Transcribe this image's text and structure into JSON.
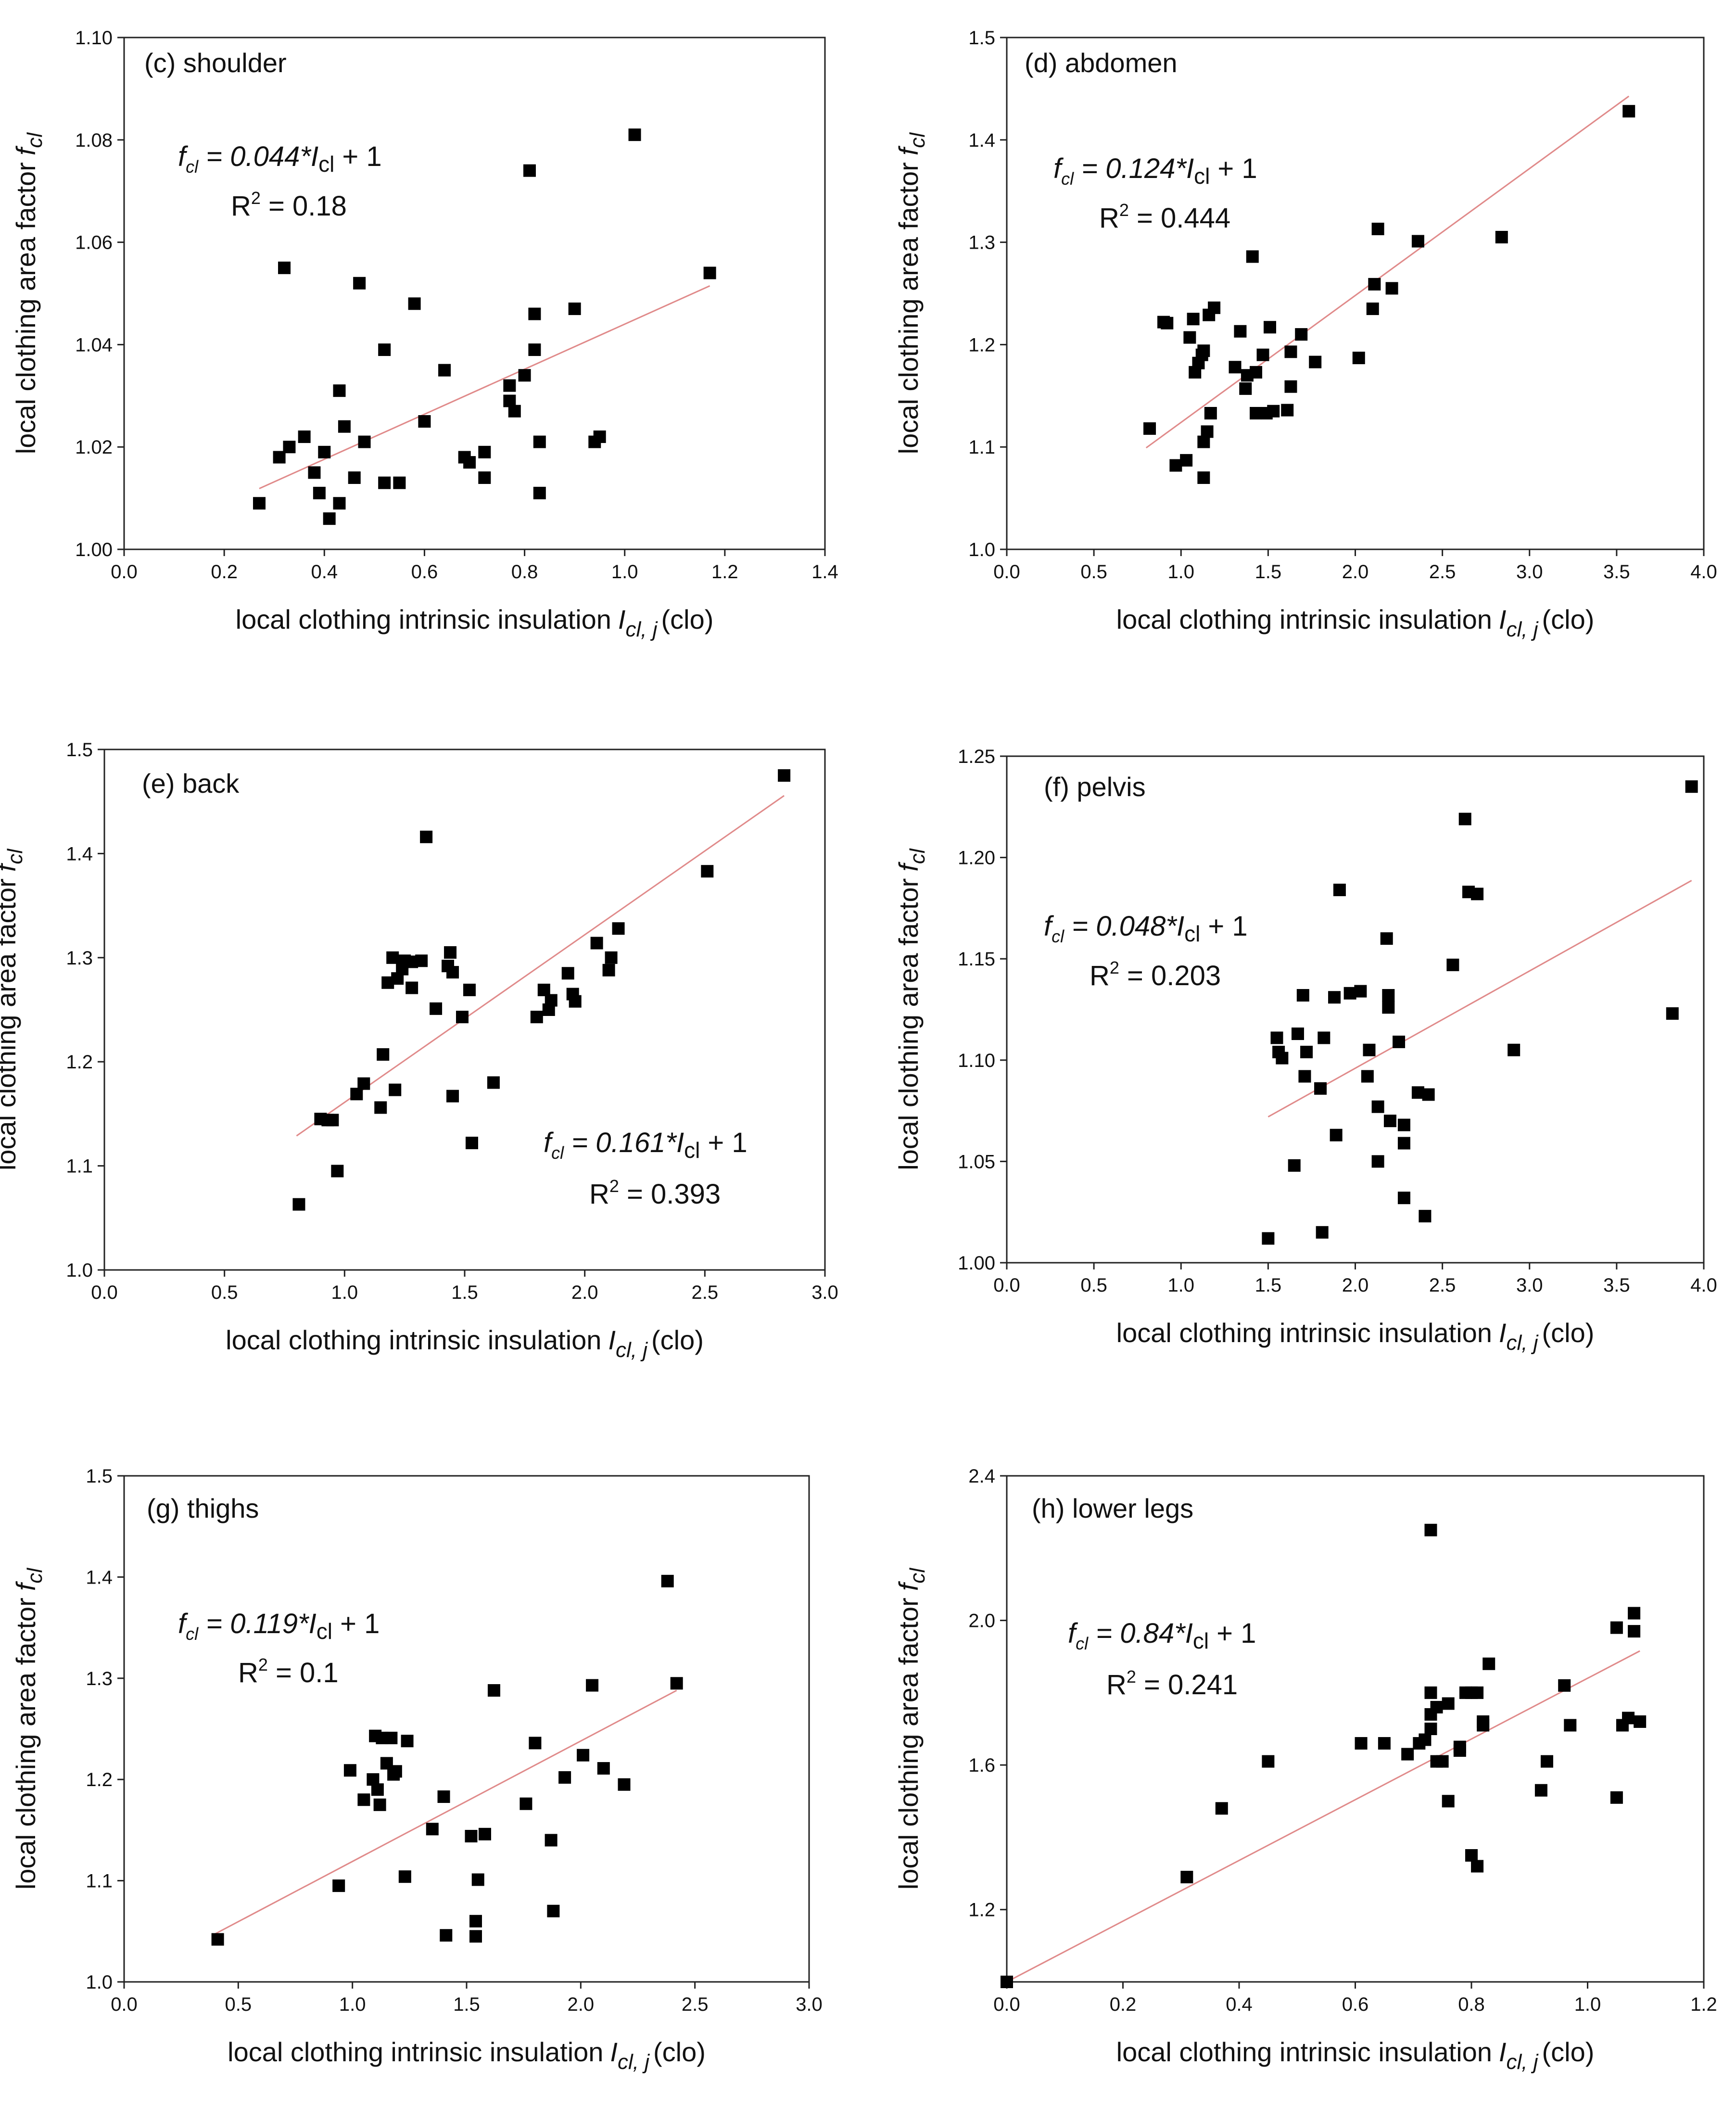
{
  "chart_data": [
    {
      "type": "scatter",
      "label": "(c) shoulder",
      "xlabel": "local clothing intrinsic insulation",
      "xlabel_sym": "I",
      "xlabel_sub": "cl, j",
      "xlabel_unit": "(clo)",
      "ylabel": "local clothing area factor",
      "ylabel_sym": "f",
      "ylabel_sub": "cl",
      "xlim": [
        0,
        1.4
      ],
      "xticks": [
        0.0,
        0.2,
        0.4,
        0.6,
        0.8,
        1.0,
        1.2,
        1.4
      ],
      "xdec": 1,
      "ylim": [
        1.0,
        1.1
      ],
      "yticks": [
        1.0,
        1.02,
        1.04,
        1.06,
        1.08,
        1.1
      ],
      "ydec": 2,
      "fit": {
        "slope": 0.044,
        "intercept": 1,
        "x_range": [
          0.27,
          1.17
        ]
      },
      "equation": {
        "lhs_sym": "f",
        "lhs_sub": "cl",
        "mid": " = 0.044*",
        "var_sym": "I",
        "var_sub": "cl",
        "rhs": " + 1",
        "r2_prefix": "R",
        "r2_exp": "2",
        "r2_value": " = 0.18"
      },
      "points": [
        [
          0.27,
          1.009
        ],
        [
          0.31,
          1.018
        ],
        [
          0.32,
          1.055
        ],
        [
          0.33,
          1.02
        ],
        [
          0.36,
          1.022
        ],
        [
          0.38,
          1.015
        ],
        [
          0.39,
          1.011
        ],
        [
          0.4,
          1.019
        ],
        [
          0.41,
          1.006
        ],
        [
          0.43,
          1.031
        ],
        [
          0.43,
          1.009
        ],
        [
          0.44,
          1.024
        ],
        [
          0.46,
          1.014
        ],
        [
          0.47,
          1.052
        ],
        [
          0.48,
          1.021
        ],
        [
          0.52,
          1.039
        ],
        [
          0.52,
          1.013
        ],
        [
          0.55,
          1.013
        ],
        [
          0.58,
          1.048
        ],
        [
          0.6,
          1.025
        ],
        [
          0.64,
          1.035
        ],
        [
          0.68,
          1.018
        ],
        [
          0.69,
          1.017
        ],
        [
          0.72,
          1.019
        ],
        [
          0.72,
          1.014
        ],
        [
          0.77,
          1.032
        ],
        [
          0.77,
          1.029
        ],
        [
          0.78,
          1.027
        ],
        [
          0.8,
          1.034
        ],
        [
          0.81,
          1.074
        ],
        [
          0.82,
          1.039
        ],
        [
          0.82,
          1.046
        ],
        [
          0.83,
          1.021
        ],
        [
          0.83,
          1.011
        ],
        [
          0.9,
          1.047
        ],
        [
          0.94,
          1.021
        ],
        [
          0.95,
          1.022
        ],
        [
          1.02,
          1.081
        ],
        [
          1.17,
          1.054
        ]
      ]
    },
    {
      "type": "scatter",
      "label": "(d) abdomen",
      "xlabel": "local clothing intrinsic insulation",
      "xlabel_sym": "I",
      "xlabel_sub": "cl, j",
      "xlabel_unit": "(clo)",
      "ylabel": "local clothing area factor",
      "ylabel_sym": "f",
      "ylabel_sub": "cl",
      "xlim": [
        0,
        4.0
      ],
      "xticks": [
        0.0,
        0.5,
        1.0,
        1.5,
        2.0,
        2.5,
        3.0,
        3.5,
        4.0
      ],
      "xdec": 1,
      "ylim": [
        1.0,
        1.5
      ],
      "yticks": [
        1.0,
        1.1,
        1.2,
        1.3,
        1.4,
        1.5
      ],
      "ydec": 1,
      "fit": {
        "slope": 0.124,
        "intercept": 1,
        "x_range": [
          0.8,
          3.57
        ]
      },
      "equation": {
        "lhs_sym": "f",
        "lhs_sub": "cl",
        "mid": " = 0.124*",
        "var_sym": "I",
        "var_sub": "cl",
        "rhs": " + 1",
        "r2_prefix": "R",
        "r2_exp": "2",
        "r2_value": " = 0.444"
      },
      "points": [
        [
          0.82,
          1.118
        ],
        [
          0.9,
          1.222
        ],
        [
          0.92,
          1.221
        ],
        [
          0.97,
          1.082
        ],
        [
          1.03,
          1.087
        ],
        [
          1.05,
          1.207
        ],
        [
          1.07,
          1.225
        ],
        [
          1.08,
          1.173
        ],
        [
          1.1,
          1.182
        ],
        [
          1.12,
          1.19
        ],
        [
          1.13,
          1.194
        ],
        [
          1.13,
          1.07
        ],
        [
          1.13,
          1.105
        ],
        [
          1.15,
          1.115
        ],
        [
          1.16,
          1.229
        ],
        [
          1.17,
          1.133
        ],
        [
          1.19,
          1.236
        ],
        [
          1.31,
          1.178
        ],
        [
          1.34,
          1.213
        ],
        [
          1.37,
          1.157
        ],
        [
          1.38,
          1.17
        ],
        [
          1.41,
          1.286
        ],
        [
          1.43,
          1.173
        ],
        [
          1.43,
          1.133
        ],
        [
          1.47,
          1.19
        ],
        [
          1.49,
          1.133
        ],
        [
          1.51,
          1.217
        ],
        [
          1.53,
          1.135
        ],
        [
          1.61,
          1.136
        ],
        [
          1.63,
          1.159
        ],
        [
          1.63,
          1.193
        ],
        [
          1.69,
          1.21
        ],
        [
          1.77,
          1.183
        ],
        [
          2.02,
          1.187
        ],
        [
          2.1,
          1.235
        ],
        [
          2.11,
          1.259
        ],
        [
          2.13,
          1.313
        ],
        [
          2.21,
          1.255
        ],
        [
          2.36,
          1.301
        ],
        [
          2.84,
          1.305
        ],
        [
          3.57,
          1.428
        ]
      ]
    },
    {
      "type": "scatter",
      "label": "(e) back",
      "xlabel": "local clothing intrinsic insulation",
      "xlabel_sym": "I",
      "xlabel_sub": "cl, j",
      "xlabel_unit": "(clo)",
      "ylabel": "local clothing area factor",
      "ylabel_sym": "f",
      "ylabel_sub": "cl",
      "xlim": [
        0,
        3.0
      ],
      "xticks": [
        0.0,
        0.5,
        1.0,
        1.5,
        2.0,
        2.5,
        3.0
      ],
      "xdec": 1,
      "ylim": [
        1.0,
        1.5
      ],
      "yticks": [
        1.0,
        1.1,
        1.2,
        1.3,
        1.4,
        1.5
      ],
      "ydec": 1,
      "fit": {
        "slope": 0.161,
        "intercept": 1,
        "x_range": [
          0.8,
          2.83
        ]
      },
      "equation": {
        "lhs_sym": "f",
        "lhs_sub": "cl",
        "mid": " = 0.161*",
        "var_sym": "I",
        "var_sub": "cl",
        "rhs": " + 1",
        "r2_prefix": "R",
        "r2_exp": "2",
        "r2_value": " = 0.393"
      },
      "points": [
        [
          0.81,
          1.063
        ],
        [
          0.9,
          1.145
        ],
        [
          0.93,
          1.144
        ],
        [
          0.95,
          1.144
        ],
        [
          0.97,
          1.095
        ],
        [
          1.05,
          1.169
        ],
        [
          1.08,
          1.179
        ],
        [
          1.15,
          1.156
        ],
        [
          1.16,
          1.207
        ],
        [
          1.18,
          1.276
        ],
        [
          1.2,
          1.3
        ],
        [
          1.21,
          1.173
        ],
        [
          1.22,
          1.28
        ],
        [
          1.24,
          1.289
        ],
        [
          1.25,
          1.297
        ],
        [
          1.28,
          1.296
        ],
        [
          1.28,
          1.271
        ],
        [
          1.32,
          1.297
        ],
        [
          1.34,
          1.416
        ],
        [
          1.38,
          1.251
        ],
        [
          1.43,
          1.292
        ],
        [
          1.44,
          1.305
        ],
        [
          1.45,
          1.286
        ],
        [
          1.45,
          1.167
        ],
        [
          1.49,
          1.243
        ],
        [
          1.52,
          1.269
        ],
        [
          1.53,
          1.122
        ],
        [
          1.62,
          1.18
        ],
        [
          1.8,
          1.243
        ],
        [
          1.83,
          1.269
        ],
        [
          1.85,
          1.25
        ],
        [
          1.86,
          1.259
        ],
        [
          1.93,
          1.285
        ],
        [
          1.95,
          1.265
        ],
        [
          1.96,
          1.258
        ],
        [
          2.05,
          1.314
        ],
        [
          2.1,
          1.288
        ],
        [
          2.11,
          1.3
        ],
        [
          2.14,
          1.328
        ],
        [
          2.51,
          1.383
        ],
        [
          2.83,
          1.475
        ]
      ]
    },
    {
      "type": "scatter",
      "label": "(f) pelvis",
      "xlabel": "local clothing intrinsic insulation",
      "xlabel_sym": "I",
      "xlabel_sub": "cl, j",
      "xlabel_unit": "(clo)",
      "ylabel": "local clothing area factor",
      "ylabel_sym": "f",
      "ylabel_sub": "cl",
      "xlim": [
        0,
        4.0
      ],
      "xticks": [
        0.0,
        0.5,
        1.0,
        1.5,
        2.0,
        2.5,
        3.0,
        3.5,
        4.0
      ],
      "xdec": 1,
      "ylim": [
        1.0,
        1.25
      ],
      "yticks": [
        1.0,
        1.05,
        1.1,
        1.15,
        1.2,
        1.25
      ],
      "ydec": 2,
      "fit": {
        "slope": 0.048,
        "intercept": 1,
        "x_range": [
          1.5,
          3.93
        ]
      },
      "equation": {
        "lhs_sym": "f",
        "lhs_sub": "cl",
        "mid": " = 0.048*",
        "var_sym": "I",
        "var_sub": "cl",
        "rhs": " + 1",
        "r2_prefix": "R",
        "r2_exp": "2",
        "r2_value": " = 0.203"
      },
      "points": [
        [
          1.5,
          1.012
        ],
        [
          1.55,
          1.111
        ],
        [
          1.56,
          1.104
        ],
        [
          1.58,
          1.101
        ],
        [
          1.65,
          1.048
        ],
        [
          1.67,
          1.113
        ],
        [
          1.7,
          1.132
        ],
        [
          1.71,
          1.092
        ],
        [
          1.72,
          1.104
        ],
        [
          1.8,
          1.086
        ],
        [
          1.81,
          1.015
        ],
        [
          1.82,
          1.111
        ],
        [
          1.88,
          1.131
        ],
        [
          1.89,
          1.063
        ],
        [
          1.91,
          1.184
        ],
        [
          1.97,
          1.133
        ],
        [
          2.03,
          1.134
        ],
        [
          2.07,
          1.092
        ],
        [
          2.08,
          1.105
        ],
        [
          2.13,
          1.077
        ],
        [
          2.13,
          1.05
        ],
        [
          2.18,
          1.16
        ],
        [
          2.19,
          1.132
        ],
        [
          2.19,
          1.126
        ],
        [
          2.2,
          1.07
        ],
        [
          2.25,
          1.109
        ],
        [
          2.28,
          1.068
        ],
        [
          2.28,
          1.059
        ],
        [
          2.28,
          1.032
        ],
        [
          2.36,
          1.084
        ],
        [
          2.4,
          1.023
        ],
        [
          2.42,
          1.083
        ],
        [
          2.56,
          1.147
        ],
        [
          2.63,
          1.219
        ],
        [
          2.65,
          1.183
        ],
        [
          2.7,
          1.182
        ],
        [
          2.91,
          1.105
        ],
        [
          3.82,
          1.123
        ],
        [
          3.93,
          1.235
        ]
      ]
    },
    {
      "type": "scatter",
      "label": "(g) thighs",
      "xlabel": "local clothing intrinsic insulation",
      "xlabel_sym": "I",
      "xlabel_sub": "cl, j",
      "xlabel_unit": "(clo)",
      "ylabel": "local clothing area factor",
      "ylabel_sym": "f",
      "ylabel_sub": "cl",
      "xlim": [
        0,
        3.0
      ],
      "xticks": [
        0.0,
        0.5,
        1.0,
        1.5,
        2.0,
        2.5,
        3.0
      ],
      "xdec": 1,
      "ylim": [
        1.0,
        1.5
      ],
      "yticks": [
        1.0,
        1.1,
        1.2,
        1.3,
        1.4,
        1.5
      ],
      "ydec": 1,
      "fit": {
        "slope": 0.119,
        "intercept": 1,
        "x_range": [
          0.4,
          2.42
        ]
      },
      "equation": {
        "lhs_sym": "f",
        "lhs_sub": "cl",
        "mid": " = 0.119*",
        "var_sym": "I",
        "var_sub": "cl",
        "rhs": " + 1",
        "r2_prefix": "R",
        "r2_exp": "2",
        "r2_value": " = 0.1"
      },
      "points": [
        [
          0.41,
          1.042
        ],
        [
          0.94,
          1.095
        ],
        [
          0.99,
          1.209
        ],
        [
          1.05,
          1.18
        ],
        [
          1.09,
          1.2
        ],
        [
          1.1,
          1.243
        ],
        [
          1.11,
          1.19
        ],
        [
          1.12,
          1.175
        ],
        [
          1.13,
          1.241
        ],
        [
          1.15,
          1.216
        ],
        [
          1.17,
          1.241
        ],
        [
          1.18,
          1.205
        ],
        [
          1.19,
          1.208
        ],
        [
          1.23,
          1.104
        ],
        [
          1.24,
          1.238
        ],
        [
          1.35,
          1.151
        ],
        [
          1.4,
          1.183
        ],
        [
          1.41,
          1.046
        ],
        [
          1.52,
          1.144
        ],
        [
          1.54,
          1.06
        ],
        [
          1.54,
          1.045
        ],
        [
          1.55,
          1.101
        ],
        [
          1.58,
          1.146
        ],
        [
          1.62,
          1.288
        ],
        [
          1.76,
          1.176
        ],
        [
          1.8,
          1.236
        ],
        [
          1.87,
          1.14
        ],
        [
          1.88,
          1.07
        ],
        [
          1.93,
          1.202
        ],
        [
          2.01,
          1.224
        ],
        [
          2.05,
          1.293
        ],
        [
          2.1,
          1.211
        ],
        [
          2.19,
          1.195
        ],
        [
          2.38,
          1.396
        ],
        [
          2.42,
          1.295
        ]
      ]
    },
    {
      "type": "scatter",
      "label": "(h) lower legs",
      "xlabel": "local clothing intrinsic insulation",
      "xlabel_sym": "I",
      "xlabel_sub": "cl, j",
      "xlabel_unit": "(clo)",
      "ylabel": "local clothing area factor",
      "ylabel_sym": "f",
      "ylabel_sub": "cl",
      "xlim": [
        0,
        1.2
      ],
      "xticks": [
        0.0,
        0.2,
        0.4,
        0.6,
        0.8,
        1.0,
        1.2
      ],
      "xdec": 1,
      "ylim": [
        1.0,
        2.4
      ],
      "yticks": [
        1.2,
        1.6,
        2.0,
        2.4
      ],
      "ydec": 1,
      "fit": {
        "slope": 0.84,
        "intercept": 1,
        "x_range": [
          0.0,
          1.09
        ]
      },
      "equation": {
        "lhs_sym": "f",
        "lhs_sub": "cl",
        "mid": " = 0.84*",
        "var_sym": "I",
        "var_sub": "cl",
        "rhs": " + 1",
        "r2_prefix": "R",
        "r2_exp": "2",
        "r2_value": " = 0.241"
      },
      "points": [
        [
          0.0,
          1.0
        ],
        [
          0.31,
          1.29
        ],
        [
          0.37,
          1.48
        ],
        [
          0.45,
          1.61
        ],
        [
          0.61,
          1.66
        ],
        [
          0.65,
          1.66
        ],
        [
          0.69,
          1.63
        ],
        [
          0.71,
          1.66
        ],
        [
          0.72,
          1.67
        ],
        [
          0.73,
          1.7
        ],
        [
          0.73,
          1.8
        ],
        [
          0.73,
          1.74
        ],
        [
          0.74,
          1.76
        ],
        [
          0.74,
          1.61
        ],
        [
          0.73,
          2.25
        ],
        [
          0.75,
          1.61
        ],
        [
          0.76,
          1.5
        ],
        [
          0.76,
          1.77
        ],
        [
          0.78,
          1.64
        ],
        [
          0.78,
          1.65
        ],
        [
          0.79,
          1.8
        ],
        [
          0.8,
          1.8
        ],
        [
          0.8,
          1.35
        ],
        [
          0.81,
          1.32
        ],
        [
          0.81,
          1.8
        ],
        [
          0.82,
          1.71
        ],
        [
          0.82,
          1.72
        ],
        [
          0.83,
          1.88
        ],
        [
          0.92,
          1.53
        ],
        [
          0.93,
          1.61
        ],
        [
          0.96,
          1.82
        ],
        [
          0.97,
          1.71
        ],
        [
          1.05,
          1.51
        ],
        [
          1.05,
          1.98
        ],
        [
          1.06,
          1.71
        ],
        [
          1.07,
          1.73
        ],
        [
          1.08,
          1.97
        ],
        [
          1.08,
          2.02
        ],
        [
          1.09,
          1.72
        ]
      ]
    }
  ]
}
